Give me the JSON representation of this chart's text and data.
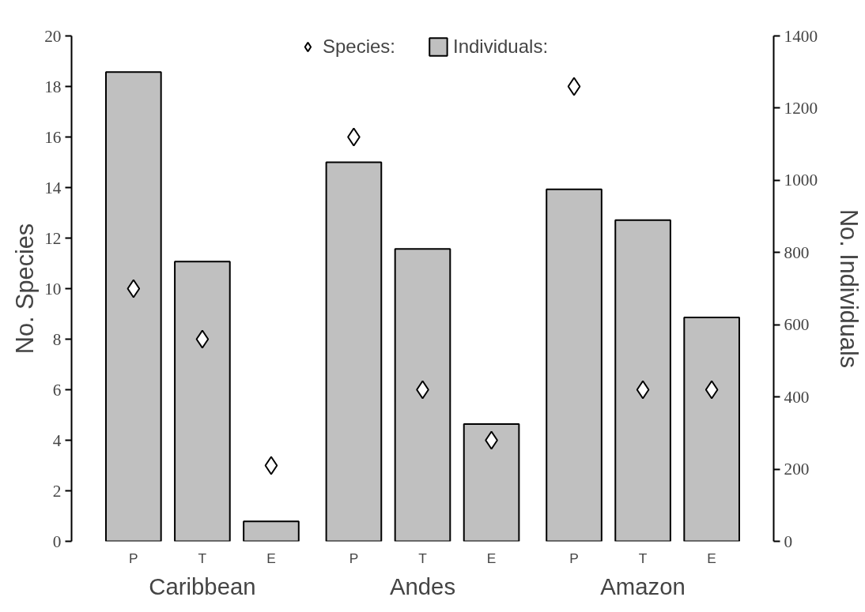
{
  "chart_data": {
    "type": "bar",
    "categories": [
      "P",
      "T",
      "E",
      "P",
      "T",
      "E",
      "P",
      "T",
      "E"
    ],
    "series": [
      {
        "name": "Individuals:",
        "axis": "y2",
        "color": "#c0c0c0",
        "values": [
          1300,
          775,
          55,
          1050,
          810,
          325,
          975,
          890,
          620
        ]
      },
      {
        "name": "Species:",
        "type": "scatter",
        "color": "#ffffff",
        "marker": "diamond",
        "values": [
          10,
          8,
          3,
          16,
          6,
          4,
          18,
          6,
          6
        ]
      }
    ],
    "ylabel": "No. Species",
    "y2label": "No. Individuals",
    "ylim": [
      0,
      20
    ],
    "yticks": [
      0,
      2,
      4,
      6,
      8,
      10,
      12,
      14,
      16,
      18,
      20
    ],
    "y2lim": [
      0,
      1400
    ],
    "y2ticks": [
      0,
      200,
      400,
      600,
      800,
      1000,
      1200,
      1400
    ],
    "annotations": [
      "Caribbean",
      "Andes",
      "Amazon"
    ],
    "legend": "top",
    "grid": false
  }
}
